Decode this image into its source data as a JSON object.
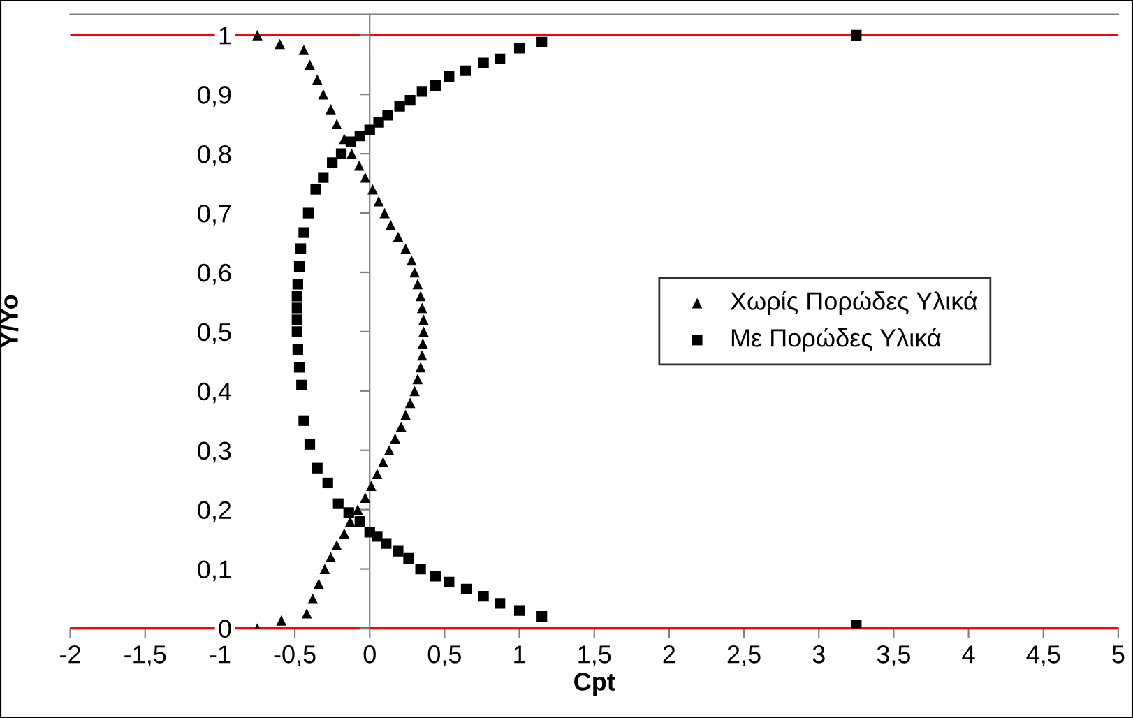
{
  "chart_data": {
    "type": "scatter",
    "xlabel": "Cpt",
    "ylabel": "Y/Yo",
    "xlim": [
      -2,
      5
    ],
    "ylim": [
      0,
      1.035
    ],
    "xticks": [
      {
        "value": -2,
        "label": "-2"
      },
      {
        "value": -1.5,
        "label": "-1,5"
      },
      {
        "value": -1,
        "label": "-1"
      },
      {
        "value": -0.5,
        "label": "-0,5"
      },
      0,
      {
        "value": 0.5,
        "label": "0,5"
      },
      1,
      {
        "value": 1.5,
        "label": "1,5"
      },
      2,
      {
        "value": 2.5,
        "label": "2,5"
      },
      3,
      {
        "value": 3.5,
        "label": "3,5"
      },
      4,
      {
        "value": 4.5,
        "label": "4,5"
      },
      5
    ],
    "yticks": [
      0,
      {
        "value": 0.1,
        "label": "0,1"
      },
      {
        "value": 0.2,
        "label": "0,2"
      },
      {
        "value": 0.3,
        "label": "0,3"
      },
      {
        "value": 0.4,
        "label": "0,4"
      },
      {
        "value": 0.5,
        "label": "0,5"
      },
      {
        "value": 0.6,
        "label": "0,6"
      },
      {
        "value": 0.7,
        "label": "0,7"
      },
      {
        "value": 0.8,
        "label": "0,8"
      },
      {
        "value": 0.9,
        "label": "0,9"
      },
      1
    ],
    "grid": false,
    "legend": "right",
    "ref_lines": [
      {
        "axis": "y",
        "value": 0,
        "color": "#ff0000"
      },
      {
        "axis": "y",
        "value": 1,
        "color": "#ff0000"
      }
    ],
    "series": [
      {
        "name": "Χωρίς Πορώδες Υλικά",
        "color": "#000000",
        "marker": "triangle",
        "x": [
          -0.75,
          -0.6,
          -0.44,
          -0.4,
          -0.35,
          -0.31,
          -0.26,
          -0.22,
          -0.17,
          -0.12,
          -0.07,
          -0.03,
          0.02,
          0.06,
          0.1,
          0.14,
          0.19,
          0.24,
          0.28,
          0.3,
          0.32,
          0.34,
          0.35,
          0.36,
          0.36,
          0.355,
          0.35,
          0.34,
          0.32,
          0.3,
          0.27,
          0.24,
          0.21,
          0.17,
          0.13,
          0.09,
          0.05,
          0.01,
          -0.03,
          -0.08,
          -0.13,
          -0.17,
          -0.22,
          -0.26,
          -0.3,
          -0.34,
          -0.38,
          -0.42,
          -0.59,
          -0.75
        ],
        "values": [
          1.0,
          0.985,
          0.975,
          0.95,
          0.925,
          0.9,
          0.875,
          0.85,
          0.825,
          0.8,
          0.78,
          0.76,
          0.74,
          0.72,
          0.7,
          0.68,
          0.66,
          0.64,
          0.62,
          0.6,
          0.58,
          0.56,
          0.54,
          0.52,
          0.5,
          0.48,
          0.46,
          0.44,
          0.42,
          0.4,
          0.38,
          0.36,
          0.34,
          0.32,
          0.3,
          0.28,
          0.26,
          0.24,
          0.22,
          0.2,
          0.18,
          0.16,
          0.14,
          0.12,
          0.1,
          0.075,
          0.05,
          0.025,
          0.013,
          0.0
        ]
      },
      {
        "name": "Με Πορώδες Υλικά",
        "color": "#000000",
        "marker": "square",
        "x": [
          3.25,
          1.15,
          1.0,
          0.87,
          0.76,
          0.64,
          0.53,
          0.44,
          0.35,
          0.27,
          0.2,
          0.12,
          0.06,
          0.0,
          -0.065,
          -0.125,
          -0.19,
          -0.25,
          -0.31,
          -0.36,
          -0.41,
          -0.44,
          -0.46,
          -0.47,
          -0.48,
          -0.485,
          -0.485,
          -0.485,
          -0.485,
          -0.48,
          -0.47,
          -0.455,
          -0.44,
          -0.4,
          -0.35,
          -0.28,
          -0.21,
          -0.14,
          -0.065,
          0.0,
          0.05,
          0.11,
          0.19,
          0.26,
          0.34,
          0.44,
          0.53,
          0.645,
          0.76,
          0.87,
          1.0,
          1.15,
          3.25
        ],
        "values": [
          1.0,
          0.988,
          0.978,
          0.96,
          0.953,
          0.94,
          0.93,
          0.915,
          0.905,
          0.89,
          0.88,
          0.865,
          0.853,
          0.84,
          0.83,
          0.82,
          0.8,
          0.785,
          0.76,
          0.74,
          0.7,
          0.667,
          0.64,
          0.61,
          0.58,
          0.56,
          0.54,
          0.52,
          0.5,
          0.47,
          0.44,
          0.41,
          0.35,
          0.31,
          0.27,
          0.245,
          0.21,
          0.195,
          0.18,
          0.162,
          0.155,
          0.143,
          0.13,
          0.118,
          0.1,
          0.088,
          0.078,
          0.066,
          0.054,
          0.042,
          0.03,
          0.02,
          0.005
        ]
      }
    ]
  }
}
